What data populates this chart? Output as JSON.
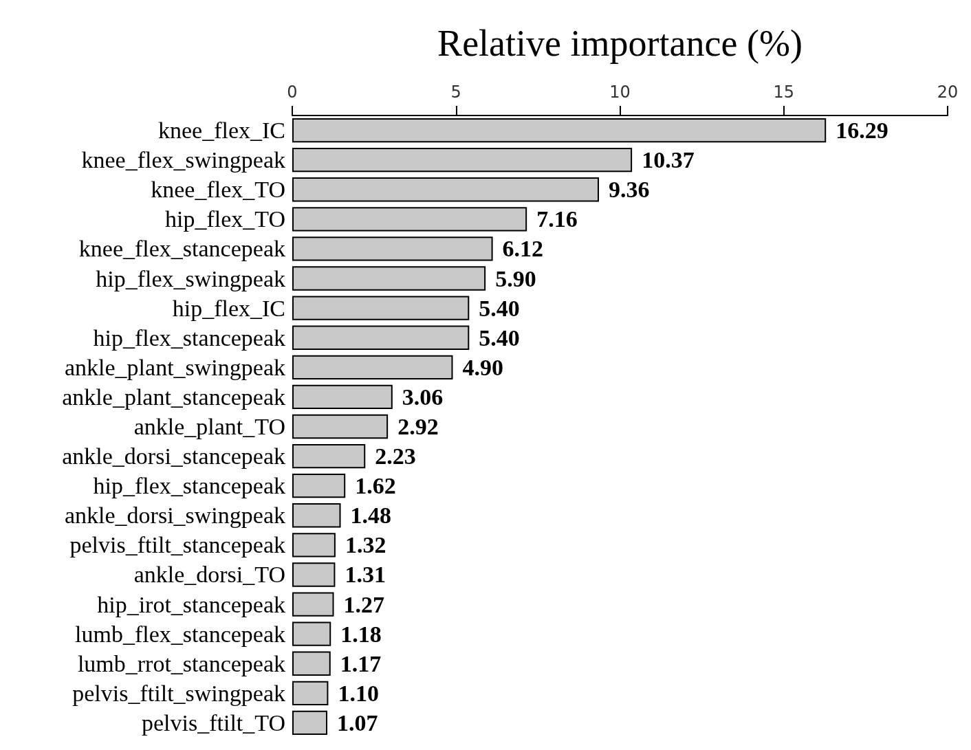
{
  "chart_data": {
    "type": "bar",
    "orientation": "horizontal",
    "xlabel": "Relative importance (%)",
    "categories": [
      "knee_flex_IC",
      "knee_flex_swingpeak",
      "knee_flex_TO",
      "hip_flex_TO",
      "knee_flex_stancepeak",
      "hip_flex_swingpeak",
      "hip_flex_IC",
      "hip_flex_stancepeak",
      "ankle_plant_swingpeak",
      "ankle_plant_stancepeak",
      "ankle_plant_TO",
      "ankle_dorsi_stancepeak",
      "hip_flex_stancepeak",
      "ankle_dorsi_swingpeak",
      "pelvis_ftilt_stancepeak",
      "ankle_dorsi_TO",
      "hip_irot_stancepeak",
      "lumb_flex_stancepeak",
      "lumb_rrot_stancepeak",
      "pelvis_ftilt_swingpeak",
      "pelvis_ftilt_TO"
    ],
    "values": [
      16.29,
      10.37,
      9.36,
      7.16,
      6.12,
      5.9,
      5.4,
      5.4,
      4.9,
      3.06,
      2.92,
      2.23,
      1.62,
      1.48,
      1.32,
      1.31,
      1.27,
      1.18,
      1.17,
      1.1,
      1.07
    ],
    "value_labels": [
      "16.29",
      "10.37",
      "9.36",
      "7.16",
      "6.12",
      "5.90",
      "5.40",
      "5.40",
      "4.90",
      "3.06",
      "2.92",
      "2.23",
      "1.62",
      "1.48",
      "1.32",
      "1.31",
      "1.27",
      "1.18",
      "1.17",
      "1.10",
      "1.07"
    ],
    "color": "#c8c8c8",
    "xlim": [
      0,
      20
    ],
    "xticks": [
      0,
      5,
      10,
      15,
      20
    ],
    "grid": false
  }
}
